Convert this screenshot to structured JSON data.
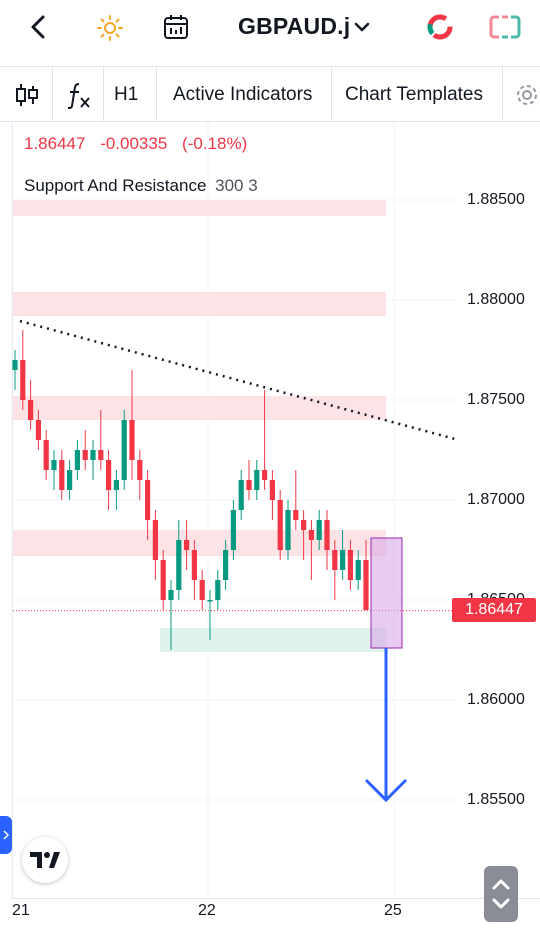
{
  "header": {
    "symbol": "GBPAUD.j"
  },
  "toolbar": {
    "interval": "H1",
    "indicators_label": "Active Indicators",
    "templates_label": "Chart Templates"
  },
  "legend": {
    "last": "1.86447",
    "change": "-0.00335",
    "change_pct": "(-0.18%)",
    "indicator_name": "Support And Resistance",
    "indicator_params": "300 3"
  },
  "price_axis": {
    "labels": [
      "1.88500",
      "1.88000",
      "1.87500",
      "1.87000",
      "1.86500",
      "1.86000",
      "1.85500"
    ],
    "current_price": "1.86447"
  },
  "time_axis": {
    "labels": [
      "21",
      "22",
      "25"
    ]
  },
  "colors": {
    "up": "#089981",
    "down": "#f23645",
    "zone_red": "#fde3e5",
    "zone_green": "#dff3ee",
    "highlight": "#d9a8e6",
    "arrow": "#2962ff"
  },
  "chart_data": {
    "type": "candlestick",
    "symbol": "GBPAUD.j",
    "interval": "H1",
    "ylim": [
      1.8525,
      1.8875
    ],
    "resistance_zones": [
      [
        1.8842,
        1.885
      ],
      [
        1.8792,
        1.8804
      ],
      [
        1.874,
        1.8752
      ],
      [
        1.8672,
        1.8685
      ]
    ],
    "support_zones": [
      [
        1.8624,
        1.8636
      ]
    ],
    "trendline": [
      [
        0,
        1.879
      ],
      [
        88,
        1.873
      ]
    ],
    "candles": [
      [
        1.8765,
        1.8775,
        1.8755,
        1.877
      ],
      [
        1.877,
        1.8785,
        1.8745,
        1.875
      ],
      [
        1.875,
        1.876,
        1.8735,
        1.874
      ],
      [
        1.874,
        1.8745,
        1.8725,
        1.873
      ],
      [
        1.873,
        1.8735,
        1.871,
        1.8715
      ],
      [
        1.8715,
        1.8725,
        1.8705,
        1.872
      ],
      [
        1.872,
        1.8725,
        1.87,
        1.8705
      ],
      [
        1.8705,
        1.872,
        1.87,
        1.8715
      ],
      [
        1.8715,
        1.873,
        1.871,
        1.8725
      ],
      [
        1.8725,
        1.8735,
        1.8715,
        1.872
      ],
      [
        1.872,
        1.873,
        1.871,
        1.8725
      ],
      [
        1.8725,
        1.8745,
        1.8715,
        1.872
      ],
      [
        1.872,
        1.8725,
        1.8695,
        1.8705
      ],
      [
        1.8705,
        1.8715,
        1.8695,
        1.871
      ],
      [
        1.871,
        1.8745,
        1.8705,
        1.874
      ],
      [
        1.874,
        1.8765,
        1.871,
        1.872
      ],
      [
        1.872,
        1.8725,
        1.87,
        1.871
      ],
      [
        1.871,
        1.8715,
        1.868,
        1.869
      ],
      [
        1.869,
        1.8695,
        1.866,
        1.867
      ],
      [
        1.867,
        1.8675,
        1.8645,
        1.865
      ],
      [
        1.865,
        1.866,
        1.8625,
        1.8655
      ],
      [
        1.8655,
        1.869,
        1.865,
        1.868
      ],
      [
        1.868,
        1.869,
        1.8665,
        1.8675
      ],
      [
        1.8675,
        1.868,
        1.865,
        1.866
      ],
      [
        1.866,
        1.8665,
        1.8645,
        1.865
      ],
      [
        1.865,
        1.8655,
        1.863,
        1.865
      ],
      [
        1.865,
        1.8665,
        1.8645,
        1.866
      ],
      [
        1.866,
        1.868,
        1.8655,
        1.8675
      ],
      [
        1.8675,
        1.87,
        1.867,
        1.8695
      ],
      [
        1.8695,
        1.8715,
        1.869,
        1.871
      ],
      [
        1.871,
        1.872,
        1.87,
        1.8705
      ],
      [
        1.8705,
        1.872,
        1.87,
        1.8715
      ],
      [
        1.8715,
        1.8755,
        1.8705,
        1.871
      ],
      [
        1.871,
        1.8715,
        1.869,
        1.87
      ],
      [
        1.87,
        1.8705,
        1.867,
        1.8675
      ],
      [
        1.8675,
        1.87,
        1.867,
        1.8695
      ],
      [
        1.8695,
        1.8715,
        1.8685,
        1.869
      ],
      [
        1.869,
        1.8695,
        1.867,
        1.8685
      ],
      [
        1.8685,
        1.869,
        1.866,
        1.868
      ],
      [
        1.868,
        1.8695,
        1.8675,
        1.869
      ],
      [
        1.869,
        1.8695,
        1.8665,
        1.8675
      ],
      [
        1.8675,
        1.868,
        1.865,
        1.8665
      ],
      [
        1.8665,
        1.8685,
        1.866,
        1.8675
      ],
      [
        1.8675,
        1.868,
        1.8655,
        1.866
      ],
      [
        1.866,
        1.8675,
        1.8655,
        1.867
      ],
      [
        1.867,
        1.868,
        1.8645,
        1.8645
      ]
    ],
    "annotations": {
      "highlight_box": [
        44,
        45,
        1.8626,
        1.8681
      ],
      "arrow": {
        "from": [
          44.5,
          1.8626
        ],
        "to": [
          44.5,
          1.855
        ]
      }
    }
  }
}
